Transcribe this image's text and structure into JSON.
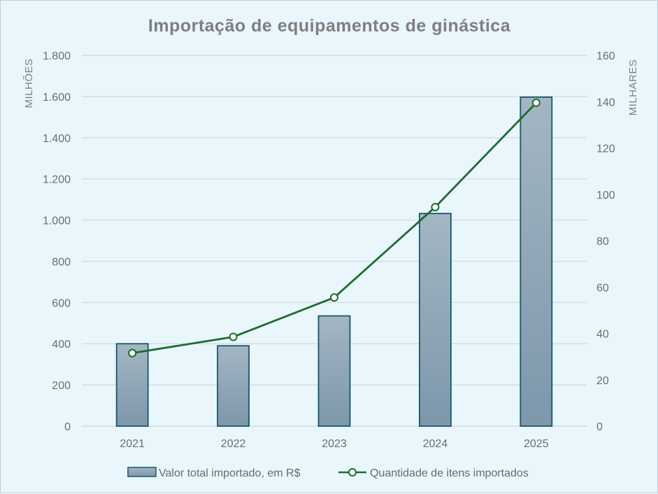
{
  "chart_data": {
    "type": "bar",
    "title": "Importação de equipamentos de ginástica",
    "categories": [
      "2021",
      "2022",
      "2023",
      "2024",
      "2025"
    ],
    "series": [
      {
        "name": "Valor total importado, em R$",
        "kind": "bar",
        "axis": "left",
        "values": [
          400,
          390,
          535,
          1032,
          1597
        ]
      },
      {
        "name": "Quantidade de itens importados",
        "kind": "line",
        "axis": "right",
        "values": [
          31.5,
          38.5,
          55.5,
          94.5,
          139.5
        ]
      }
    ],
    "y_left": {
      "label": "MILHÕES",
      "range": [
        0,
        1800
      ],
      "ticks": [
        0,
        200,
        400,
        600,
        800,
        1000,
        1200,
        1400,
        1600,
        1800
      ],
      "tick_labels": [
        "0",
        "200",
        "400",
        "600",
        "800",
        "1.000",
        "1.200",
        "1.400",
        "1.600",
        "1.800"
      ]
    },
    "y_right": {
      "label": "MILHARES",
      "range": [
        0,
        160
      ],
      "ticks": [
        0,
        20,
        40,
        60,
        80,
        100,
        120,
        140,
        160
      ],
      "tick_labels": [
        "0",
        "20",
        "40",
        "60",
        "80",
        "100",
        "120",
        "140",
        "160"
      ]
    },
    "grid": true,
    "legend_position": "bottom"
  },
  "colors": {
    "background": "#e9f6fb",
    "bar_top": "#a3b6c3",
    "bar_bottom": "#7d97ab",
    "bar_border": "#17576b",
    "line": "#1e6b2e",
    "grid": "#cfd8dc"
  }
}
